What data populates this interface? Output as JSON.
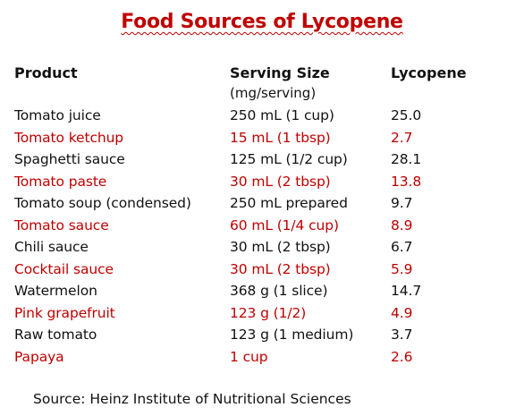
{
  "title": "Food Sources of Lycopene",
  "headers": {
    "product": "Product",
    "serving_size": "Serving Size",
    "lycopene": "Lycopene",
    "unit_note": "(mg/serving)"
  },
  "rows": [
    {
      "product": "Tomato juice",
      "serving": "250 mL (1 cup)",
      "lycopene": "25.0",
      "highlight": false
    },
    {
      "product": "Tomato ketchup",
      "serving": "15 mL (1 tbsp)",
      "lycopene": "2.7",
      "highlight": true
    },
    {
      "product": "Spaghetti sauce",
      "serving": "125 mL (1/2 cup)",
      "lycopene": "28.1",
      "highlight": false
    },
    {
      "product": "Tomato paste",
      "serving": "30 mL (2 tbsp)",
      "lycopene": "13.8",
      "highlight": true
    },
    {
      "product": "Tomato soup (condensed)",
      "serving": "250 mL prepared",
      "lycopene": "9.7",
      "highlight": false
    },
    {
      "product": "Tomato sauce",
      "serving": "60 mL (1/4 cup)",
      "lycopene": "8.9",
      "highlight": true
    },
    {
      "product": "Chili sauce",
      "serving": "30 mL (2 tbsp)",
      "lycopene": "6.7",
      "highlight": false
    },
    {
      "product": "Cocktail sauce",
      "serving": "30 mL (2 tbsp)",
      "lycopene": "5.9",
      "highlight": true
    },
    {
      "product": "Watermelon",
      "serving": "368 g (1 slice)",
      "lycopene": "14.7",
      "highlight": false
    },
    {
      "product": "Pink grapefruit",
      "serving": "123 g (1/2)",
      "lycopene": "4.9",
      "highlight": true
    },
    {
      "product": "Raw tomato",
      "serving": "123 g (1 medium)",
      "lycopene": "3.7",
      "highlight": false
    },
    {
      "product": "Papaya",
      "serving": "1 cup",
      "lycopene": "2.6",
      "highlight": true
    }
  ],
  "source": "Source: Heinz Institute of Nutritional Sciences",
  "colors": {
    "accent": "#c00000",
    "text": "#111111",
    "background": "#ffffff"
  }
}
